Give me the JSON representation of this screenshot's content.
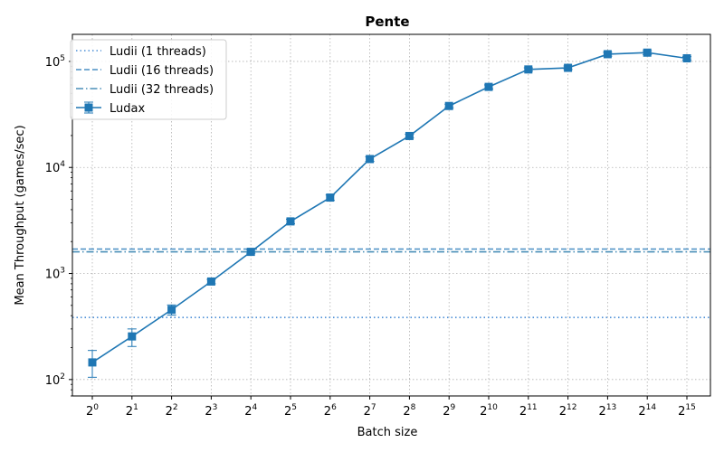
{
  "chart_data": {
    "type": "line",
    "title": "Pente",
    "xlabel": "Batch size",
    "ylabel": "Mean Throughput (games/sec)",
    "yscale": "log",
    "ylim": [
      70,
      180000
    ],
    "grid": true,
    "legend_position": "top-left",
    "x_base": "2",
    "x_exponents": [
      0,
      1,
      2,
      3,
      4,
      5,
      6,
      7,
      8,
      9,
      10,
      11,
      12,
      13,
      14,
      15
    ],
    "y_ticks": [
      {
        "base": "10",
        "exp": "2",
        "value": 100
      },
      {
        "base": "10",
        "exp": "3",
        "value": 1000
      },
      {
        "base": "10",
        "exp": "4",
        "value": 10000
      },
      {
        "base": "10",
        "exp": "5",
        "value": 100000
      }
    ],
    "reference_lines": [
      {
        "name": "Ludii (1 threads)",
        "value": 385,
        "style": "dotted",
        "color": "#4c8fd6"
      },
      {
        "name": "Ludii (16 threads)",
        "value": 1700,
        "style": "dashed",
        "color": "#4a8fc4"
      },
      {
        "name": "Ludii (32 threads)",
        "value": 1600,
        "style": "dashdot",
        "color": "#4a8fb8"
      }
    ],
    "series": [
      {
        "name": "Ludax",
        "color": "#1f77b4",
        "marker": "square",
        "x": [
          1,
          2,
          4,
          8,
          16,
          32,
          64,
          128,
          256,
          512,
          1024,
          2048,
          4096,
          8192,
          16384,
          32768
        ],
        "values": [
          145,
          255,
          455,
          840,
          1600,
          3100,
          5200,
          12000,
          19800,
          38000,
          57500,
          84000,
          87000,
          117000,
          121000,
          107000
        ],
        "err_low": [
          105,
          205,
          405,
          800,
          1550,
          2950,
          4900,
          11400,
          19000,
          36500,
          55000,
          81000,
          84000,
          112000,
          116000,
          103000
        ],
        "err_high": [
          188,
          300,
          505,
          880,
          1680,
          3250,
          5500,
          12600,
          20600,
          39500,
          60000,
          87000,
          90500,
          122000,
          126000,
          111000
        ]
      }
    ]
  }
}
